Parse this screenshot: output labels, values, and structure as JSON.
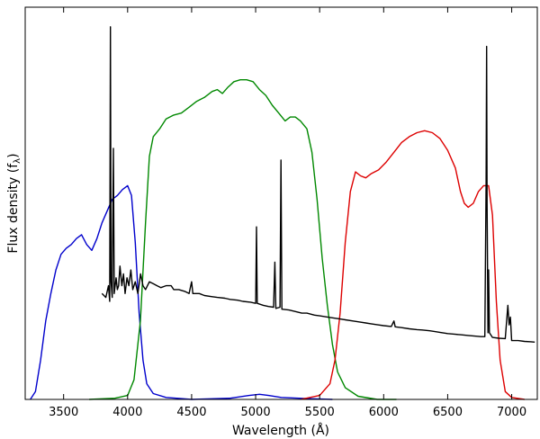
{
  "chart_data": {
    "type": "line",
    "title": "",
    "xlabel": "Wavelength (Å)",
    "ylabel_main": "Flux density (f",
    "ylabel_sub": "λ",
    "ylabel_close": ")",
    "xlim": [
      3200,
      7200
    ],
    "ylim": [
      0,
      1.0
    ],
    "x_ticks": [
      3500,
      4000,
      4500,
      5000,
      5500,
      6000,
      6500,
      7000
    ],
    "x_tick_labels": [
      "3500",
      "4000",
      "4500",
      "5000",
      "5500",
      "6000",
      "6500",
      "7000"
    ],
    "y_ticks_labeled": false,
    "grid": false,
    "legend": "none",
    "series": [
      {
        "color": "#0000cc",
        "points": [
          [
            3240,
            0.0
          ],
          [
            3280,
            0.02
          ],
          [
            3320,
            0.1
          ],
          [
            3360,
            0.2
          ],
          [
            3400,
            0.27
          ],
          [
            3440,
            0.33
          ],
          [
            3480,
            0.37
          ],
          [
            3520,
            0.385
          ],
          [
            3560,
            0.395
          ],
          [
            3600,
            0.41
          ],
          [
            3640,
            0.42
          ],
          [
            3680,
            0.395
          ],
          [
            3720,
            0.38
          ],
          [
            3760,
            0.41
          ],
          [
            3800,
            0.45
          ],
          [
            3840,
            0.48
          ],
          [
            3880,
            0.51
          ],
          [
            3920,
            0.52
          ],
          [
            3960,
            0.535
          ],
          [
            4000,
            0.545
          ],
          [
            4030,
            0.52
          ],
          [
            4060,
            0.4
          ],
          [
            4090,
            0.22
          ],
          [
            4120,
            0.1
          ],
          [
            4150,
            0.04
          ],
          [
            4200,
            0.015
          ],
          [
            4300,
            0.005
          ],
          [
            4500,
            0.0
          ],
          [
            4800,
            0.003
          ],
          [
            4950,
            0.01
          ],
          [
            5030,
            0.013
          ],
          [
            5100,
            0.01
          ],
          [
            5200,
            0.005
          ],
          [
            5400,
            0.002
          ],
          [
            5600,
            0.0
          ]
        ]
      },
      {
        "color": "#008800",
        "points": [
          [
            3700,
            0.0
          ],
          [
            3900,
            0.003
          ],
          [
            4000,
            0.01
          ],
          [
            4050,
            0.05
          ],
          [
            4100,
            0.2
          ],
          [
            4140,
            0.45
          ],
          [
            4170,
            0.62
          ],
          [
            4200,
            0.67
          ],
          [
            4250,
            0.69
          ],
          [
            4300,
            0.715
          ],
          [
            4360,
            0.725
          ],
          [
            4420,
            0.73
          ],
          [
            4480,
            0.745
          ],
          [
            4540,
            0.76
          ],
          [
            4600,
            0.77
          ],
          [
            4660,
            0.785
          ],
          [
            4700,
            0.79
          ],
          [
            4740,
            0.78
          ],
          [
            4780,
            0.795
          ],
          [
            4830,
            0.81
          ],
          [
            4880,
            0.815
          ],
          [
            4930,
            0.815
          ],
          [
            4980,
            0.81
          ],
          [
            5030,
            0.79
          ],
          [
            5080,
            0.775
          ],
          [
            5130,
            0.75
          ],
          [
            5180,
            0.73
          ],
          [
            5230,
            0.71
          ],
          [
            5270,
            0.72
          ],
          [
            5310,
            0.72
          ],
          [
            5350,
            0.71
          ],
          [
            5400,
            0.69
          ],
          [
            5440,
            0.63
          ],
          [
            5480,
            0.51
          ],
          [
            5520,
            0.36
          ],
          [
            5560,
            0.24
          ],
          [
            5600,
            0.14
          ],
          [
            5640,
            0.07
          ],
          [
            5700,
            0.03
          ],
          [
            5800,
            0.008
          ],
          [
            5950,
            0.0
          ],
          [
            6100,
            0.0
          ]
        ]
      },
      {
        "color": "#dd0000",
        "points": [
          [
            5350,
            0.0
          ],
          [
            5500,
            0.01
          ],
          [
            5580,
            0.04
          ],
          [
            5620,
            0.1
          ],
          [
            5660,
            0.22
          ],
          [
            5700,
            0.4
          ],
          [
            5740,
            0.53
          ],
          [
            5780,
            0.58
          ],
          [
            5820,
            0.57
          ],
          [
            5860,
            0.565
          ],
          [
            5900,
            0.575
          ],
          [
            5960,
            0.585
          ],
          [
            6020,
            0.605
          ],
          [
            6080,
            0.63
          ],
          [
            6140,
            0.655
          ],
          [
            6200,
            0.67
          ],
          [
            6260,
            0.68
          ],
          [
            6320,
            0.685
          ],
          [
            6380,
            0.68
          ],
          [
            6440,
            0.665
          ],
          [
            6500,
            0.635
          ],
          [
            6560,
            0.59
          ],
          [
            6600,
            0.53
          ],
          [
            6630,
            0.5
          ],
          [
            6660,
            0.49
          ],
          [
            6700,
            0.5
          ],
          [
            6740,
            0.53
          ],
          [
            6780,
            0.545
          ],
          [
            6820,
            0.545
          ],
          [
            6850,
            0.47
          ],
          [
            6880,
            0.25
          ],
          [
            6910,
            0.1
          ],
          [
            6950,
            0.02
          ],
          [
            7000,
            0.005
          ],
          [
            7100,
            0.0
          ]
        ]
      },
      {
        "color": "#000000",
        "points": [
          [
            3800,
            0.27
          ],
          [
            3830,
            0.26
          ],
          [
            3850,
            0.29
          ],
          [
            3860,
            0.25
          ],
          [
            3866,
            0.95
          ],
          [
            3871,
            0.3
          ],
          [
            3880,
            0.26
          ],
          [
            3889,
            0.64
          ],
          [
            3895,
            0.27
          ],
          [
            3910,
            0.31
          ],
          [
            3920,
            0.28
          ],
          [
            3930,
            0.29
          ],
          [
            3940,
            0.34
          ],
          [
            3955,
            0.29
          ],
          [
            3968,
            0.32
          ],
          [
            3980,
            0.27
          ],
          [
            3995,
            0.31
          ],
          [
            4010,
            0.29
          ],
          [
            4025,
            0.33
          ],
          [
            4040,
            0.28
          ],
          [
            4060,
            0.3
          ],
          [
            4080,
            0.27
          ],
          [
            4101,
            0.32
          ],
          [
            4120,
            0.29
          ],
          [
            4140,
            0.28
          ],
          [
            4170,
            0.3
          ],
          [
            4200,
            0.295
          ],
          [
            4230,
            0.29
          ],
          [
            4260,
            0.285
          ],
          [
            4300,
            0.29
          ],
          [
            4340,
            0.29
          ],
          [
            4360,
            0.28
          ],
          [
            4400,
            0.28
          ],
          [
            4450,
            0.275
          ],
          [
            4480,
            0.27
          ],
          [
            4500,
            0.3
          ],
          [
            4510,
            0.27
          ],
          [
            4560,
            0.27
          ],
          [
            4600,
            0.265
          ],
          [
            4660,
            0.262
          ],
          [
            4700,
            0.26
          ],
          [
            4760,
            0.258
          ],
          [
            4800,
            0.255
          ],
          [
            4860,
            0.253
          ],
          [
            4900,
            0.25
          ],
          [
            4960,
            0.248
          ],
          [
            5000,
            0.245
          ],
          [
            5007,
            0.44
          ],
          [
            5012,
            0.245
          ],
          [
            5060,
            0.24
          ],
          [
            5100,
            0.237
          ],
          [
            5140,
            0.235
          ],
          [
            5150,
            0.35
          ],
          [
            5158,
            0.232
          ],
          [
            5190,
            0.235
          ],
          [
            5198,
            0.61
          ],
          [
            5205,
            0.23
          ],
          [
            5260,
            0.228
          ],
          [
            5300,
            0.225
          ],
          [
            5360,
            0.22
          ],
          [
            5400,
            0.22
          ],
          [
            5460,
            0.215
          ],
          [
            5500,
            0.213
          ],
          [
            5560,
            0.21
          ],
          [
            5600,
            0.208
          ],
          [
            5660,
            0.205
          ],
          [
            5700,
            0.203
          ],
          [
            5760,
            0.2
          ],
          [
            5800,
            0.198
          ],
          [
            5860,
            0.195
          ],
          [
            5900,
            0.193
          ],
          [
            5960,
            0.19
          ],
          [
            6000,
            0.188
          ],
          [
            6060,
            0.186
          ],
          [
            6080,
            0.2
          ],
          [
            6090,
            0.185
          ],
          [
            6140,
            0.183
          ],
          [
            6200,
            0.18
          ],
          [
            6260,
            0.178
          ],
          [
            6300,
            0.177
          ],
          [
            6360,
            0.175
          ],
          [
            6400,
            0.173
          ],
          [
            6460,
            0.17
          ],
          [
            6500,
            0.168
          ],
          [
            6560,
            0.166
          ],
          [
            6600,
            0.165
          ],
          [
            6660,
            0.163
          ],
          [
            6700,
            0.162
          ],
          [
            6760,
            0.16
          ],
          [
            6790,
            0.16
          ],
          [
            6800,
            0.55
          ],
          [
            6804,
            0.9
          ],
          [
            6808,
            0.5
          ],
          [
            6815,
            0.17
          ],
          [
            6820,
            0.33
          ],
          [
            6826,
            0.17
          ],
          [
            6850,
            0.158
          ],
          [
            6900,
            0.156
          ],
          [
            6950,
            0.155
          ],
          [
            6970,
            0.24
          ],
          [
            6980,
            0.19
          ],
          [
            6990,
            0.21
          ],
          [
            7000,
            0.15
          ],
          [
            7050,
            0.15
          ],
          [
            7100,
            0.148
          ],
          [
            7150,
            0.147
          ],
          [
            7180,
            0.146
          ]
        ]
      }
    ]
  }
}
